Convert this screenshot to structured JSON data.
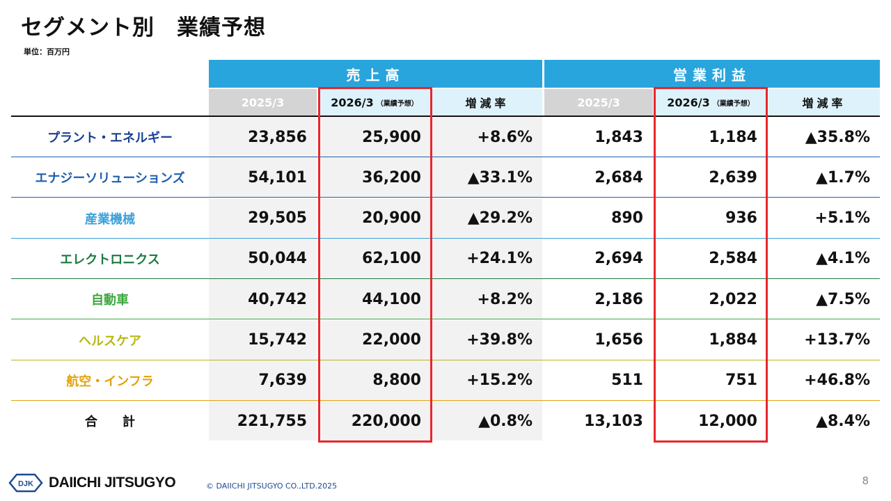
{
  "title": "セグメント別　業績予想",
  "unit": "単位：百万円",
  "groups": {
    "sales": "売上高",
    "profit": "営業利益"
  },
  "subheaders": {
    "prev": "2025/3",
    "forecast": "2026/3",
    "forecast_note": "（業績予想）",
    "rate": "増減率"
  },
  "rows": [
    {
      "segment": "プラント・エネルギー",
      "color": "#1c3f94",
      "s_prev": "23,856",
      "s_fc": "25,900",
      "s_rate": "+8.6%",
      "p_prev": "1,843",
      "p_fc": "1,184",
      "p_rate": "▲35.8%"
    },
    {
      "segment": "エナジーソリューションズ",
      "color": "#1c5fae",
      "s_prev": "54,101",
      "s_fc": "36,200",
      "s_rate": "▲33.1%",
      "p_prev": "2,684",
      "p_fc": "2,639",
      "p_rate": "▲1.7%"
    },
    {
      "segment": "産業機械",
      "color": "#3aa1d8",
      "s_prev": "29,505",
      "s_fc": "20,900",
      "s_rate": "▲29.2%",
      "p_prev": "890",
      "p_fc": "936",
      "p_rate": "+5.1%"
    },
    {
      "segment": "エレクトロニクス",
      "color": "#1b7a3e",
      "s_prev": "50,044",
      "s_fc": "62,100",
      "s_rate": "+24.1%",
      "p_prev": "2,694",
      "p_fc": "2,584",
      "p_rate": "▲4.1%"
    },
    {
      "segment": "自動車",
      "color": "#3ea83e",
      "s_prev": "40,742",
      "s_fc": "44,100",
      "s_rate": "+8.2%",
      "p_prev": "2,186",
      "p_fc": "2,022",
      "p_rate": "▲7.5%"
    },
    {
      "segment": "ヘルスケア",
      "color": "#b6b812",
      "s_prev": "15,742",
      "s_fc": "22,000",
      "s_rate": "+39.8%",
      "p_prev": "1,656",
      "p_fc": "1,884",
      "p_rate": "+13.7%"
    },
    {
      "segment": "航空・インフラ",
      "color": "#e3a20c",
      "s_prev": "7,639",
      "s_fc": "8,800",
      "s_rate": "+15.2%",
      "p_prev": "511",
      "p_fc": "751",
      "p_rate": "+46.8%"
    },
    {
      "segment": "合　　計",
      "color": "#111111",
      "s_prev": "221,755",
      "s_fc": "220,000",
      "s_rate": "▲0.8%",
      "p_prev": "13,103",
      "p_fc": "12,000",
      "p_rate": "▲8.4%"
    }
  ],
  "line_colors": [
    "#1c5fae",
    "#1c5fae",
    "#3aa1d8",
    "#1b7a3e",
    "#3ea83e",
    "#b6b812",
    "#e3a20c",
    "#ffffff"
  ],
  "footer": {
    "logo_mark": "DJK",
    "brand": "DAIICHI JITSUGYO",
    "copyright": "© DAIICHI JITSUGYO CO.,LTD.2025",
    "page": "8"
  },
  "colors": {
    "header_blue": "#29a5de",
    "header_light": "#ddf2fb",
    "highlight_red": "#e8262d"
  }
}
